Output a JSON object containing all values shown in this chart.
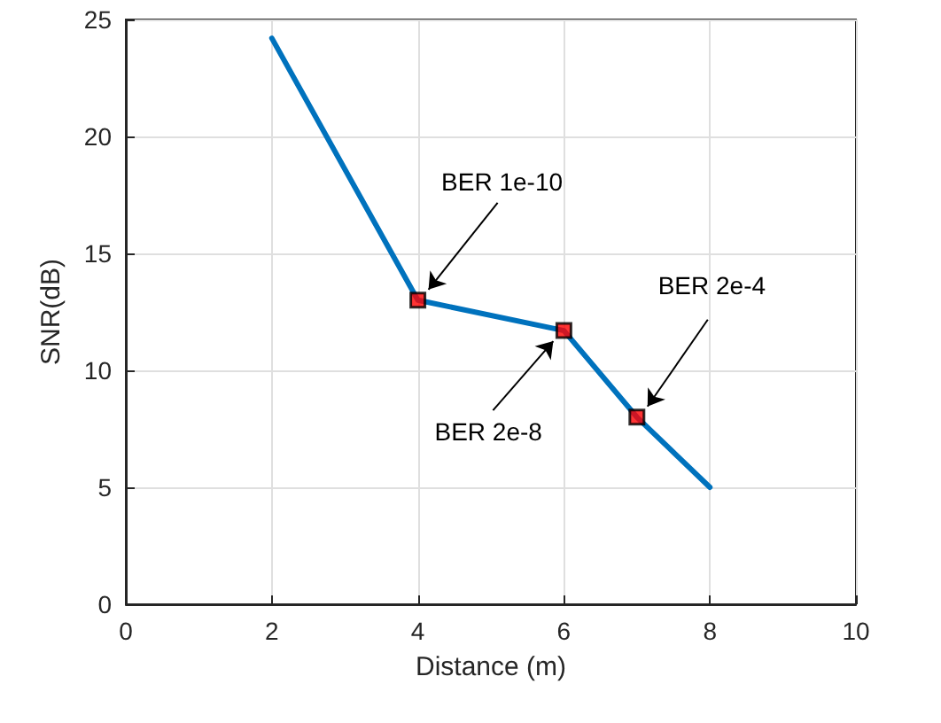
{
  "chart_data": {
    "type": "line",
    "xlabel": "Distance (m)",
    "ylabel": "SNR(dB)",
    "xlim": [
      0,
      10
    ],
    "xticks": [
      0,
      2,
      4,
      6,
      8,
      10
    ],
    "ylim": [
      0,
      25
    ],
    "yticks": [
      0,
      5,
      10,
      15,
      20,
      25
    ],
    "grid": true,
    "series": [
      {
        "color": "#0072bd",
        "marker": "none",
        "line_style": "solid",
        "x": [
          2,
          4,
          6,
          7,
          8
        ],
        "values": [
          24.2,
          13,
          11.7,
          8,
          5
        ]
      },
      {
        "type": "scatter",
        "color": "#ff0000",
        "marker": "square",
        "x": [
          4,
          6,
          7
        ],
        "values": [
          13,
          11.7,
          8
        ]
      }
    ],
    "annotations": [
      {
        "text": "BER 1e-10",
        "x": 4,
        "y": 13
      },
      {
        "text": "BER 2e-8",
        "x": 6,
        "y": 11.7
      },
      {
        "text": "BER 2e-4",
        "x": 7,
        "y": 8
      }
    ]
  }
}
